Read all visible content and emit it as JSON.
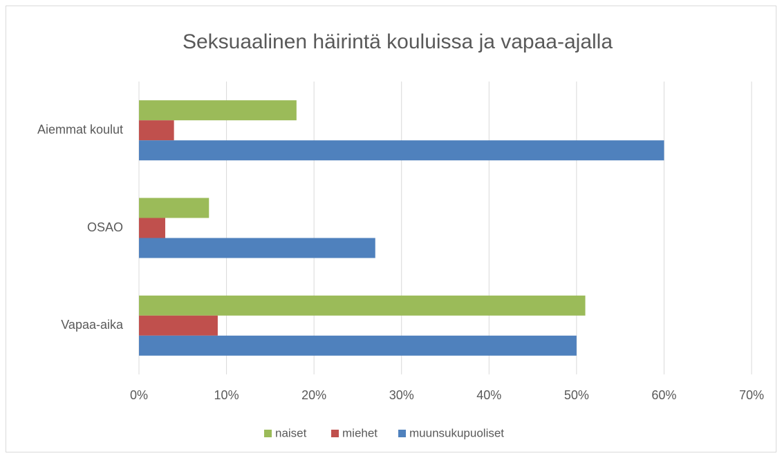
{
  "chart_data": {
    "type": "bar",
    "orientation": "horizontal",
    "title": "Seksuaalinen häirintä kouluissa ja vapaa-ajalla",
    "categories": [
      "Aiemmat koulut",
      "OSAO",
      "Vapaa-aika"
    ],
    "series": [
      {
        "name": "naiset",
        "color": "#9bbb59",
        "values": [
          18,
          8,
          51
        ]
      },
      {
        "name": "miehet",
        "color": "#c0504d",
        "values": [
          4,
          3,
          9
        ]
      },
      {
        "name": "muunsukupuoliset",
        "color": "#4f81bd",
        "values": [
          60,
          27,
          50
        ]
      }
    ],
    "xlim": [
      0,
      70
    ],
    "xticks": [
      {
        "value": 0,
        "label": "0%"
      },
      {
        "value": 10,
        "label": "10%"
      },
      {
        "value": 20,
        "label": "20%"
      },
      {
        "value": 30,
        "label": "30%"
      },
      {
        "value": 40,
        "label": "40%"
      },
      {
        "value": 50,
        "label": "50%"
      },
      {
        "value": 60,
        "label": "60%"
      },
      {
        "value": 70,
        "label": "70%"
      }
    ],
    "grid": true,
    "legend": "bottom"
  }
}
